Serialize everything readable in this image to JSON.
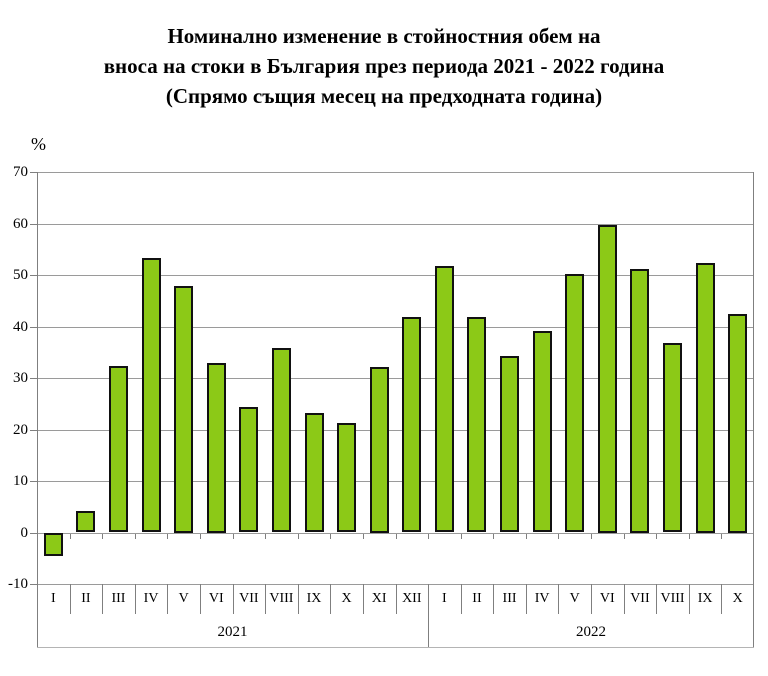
{
  "title": {
    "line1": "Номинално изменение в стойностния обем на",
    "line2": "вноса на стоки в България през периода 2021 - 2022 година",
    "line3": "(Спрямо същия месец на предходната година)"
  },
  "chart_data": {
    "type": "bar",
    "title": "Номинално изменение в стойностния обем на вноса на стоки в България през периода 2021 - 2022 година (Спрямо същия месец на предходната година)",
    "ylabel": "%",
    "xlabel": "",
    "ylim": [
      -10,
      70
    ],
    "ytick_step": 10,
    "yticks": [
      70,
      60,
      50,
      40,
      30,
      20,
      10,
      0,
      -10
    ],
    "grid": true,
    "legend": false,
    "bar_color": "#8cc917",
    "bar_border_color": "#111111",
    "grid_color": "#9a9a9a",
    "groups": [
      {
        "year": "2021",
        "categories": [
          "I",
          "II",
          "III",
          "IV",
          "V",
          "VI",
          "VII",
          "VIII",
          "IX",
          "X",
          "XI",
          "XII"
        ],
        "values": [
          -4.5,
          4.1,
          32.3,
          53.3,
          47.9,
          33.0,
          24.3,
          35.8,
          23.2,
          21.2,
          32.2,
          41.8
        ]
      },
      {
        "year": "2022",
        "categories": [
          "I",
          "II",
          "III",
          "IV",
          "V",
          "VI",
          "VII",
          "VIII",
          "IX",
          "X"
        ],
        "values": [
          51.7,
          41.8,
          34.2,
          39.1,
          50.1,
          59.8,
          51.2,
          36.7,
          52.4,
          42.5
        ]
      }
    ]
  }
}
